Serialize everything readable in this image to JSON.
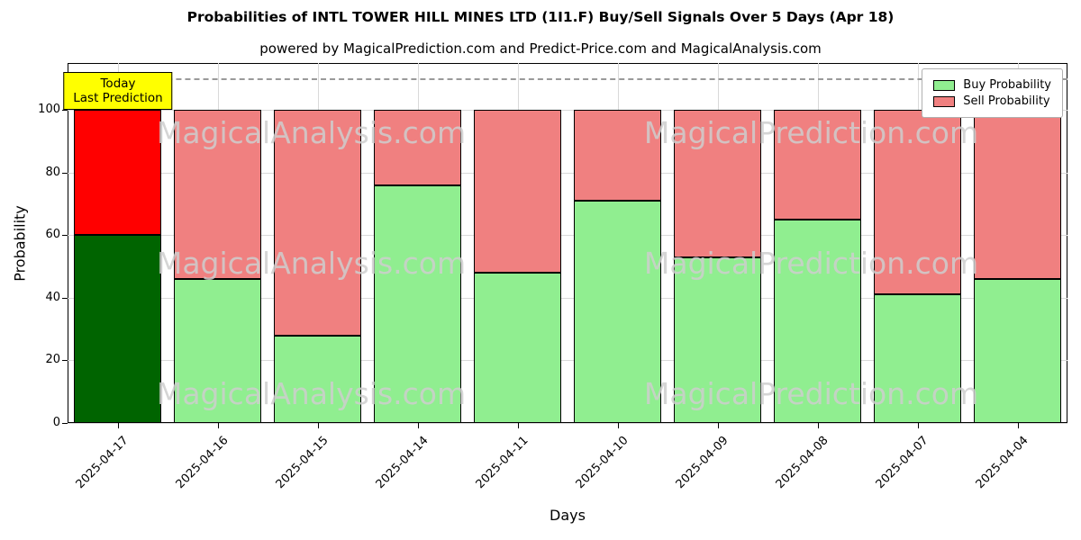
{
  "title": "Probabilities of INTL TOWER HILL MINES LTD (1I1.F) Buy/Sell Signals Over 5 Days (Apr 18)",
  "subtitle": "powered by MagicalPrediction.com and Predict-Price.com and MagicalAnalysis.com",
  "chart_data": {
    "type": "bar",
    "stacked": true,
    "title": "Probabilities of INTL TOWER HILL MINES LTD (1I1.F) Buy/Sell Signals Over 5 Days (Apr 18)",
    "xlabel": "Days",
    "ylabel": "Probability",
    "categories": [
      "2025-04-17",
      "2025-04-16",
      "2025-04-15",
      "2025-04-14",
      "2025-04-11",
      "2025-04-10",
      "2025-04-09",
      "2025-04-08",
      "2025-04-07",
      "2025-04-04"
    ],
    "series": [
      {
        "name": "Buy Probability",
        "color": "#90ee90",
        "values": [
          60,
          46,
          28,
          76,
          48,
          71,
          53,
          65,
          41,
          46
        ]
      },
      {
        "name": "Sell Probability",
        "color": "#f08080",
        "values": [
          40,
          54,
          72,
          24,
          52,
          29,
          47,
          35,
          59,
          54
        ]
      }
    ],
    "highlight": {
      "index": 0,
      "buy_color": "#006400",
      "sell_color": "#ff0000"
    },
    "annotation": {
      "lines": [
        "Today",
        "Last Prediction"
      ],
      "bg": "#ffff00"
    },
    "dashed_line_y": 110,
    "ylim": [
      0,
      115
    ],
    "yticks": [
      0,
      20,
      40,
      60,
      80,
      100
    ],
    "grid": true,
    "legend_position": "top-right",
    "watermarks": [
      "MagicalAnalysis.com",
      "MagicalPrediction.com"
    ]
  }
}
